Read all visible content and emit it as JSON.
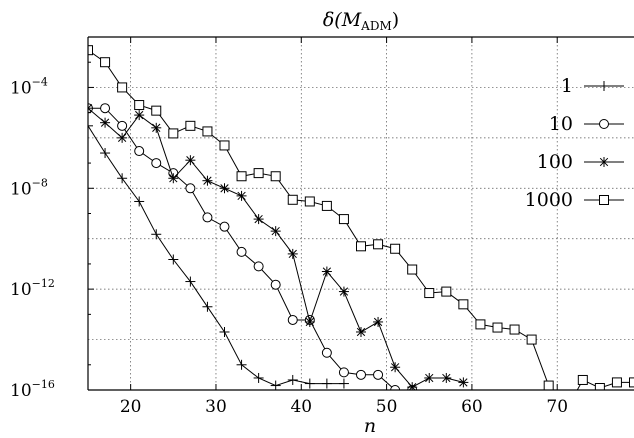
{
  "chart_data": {
    "type": "line",
    "title": "δ(M_ADM)",
    "title_parts": {
      "main": "δ(M",
      "sub": "ADM",
      "close": ")"
    },
    "xlabel": "n",
    "ylabel": "",
    "y_scale": "log",
    "xlim": [
      15,
      79
    ],
    "ylim": [
      1e-16,
      0.01
    ],
    "x_ticks": [
      20,
      30,
      40,
      50,
      60,
      70
    ],
    "x_tick_labels": [
      "20",
      "30",
      "40",
      "50",
      "60",
      "70"
    ],
    "y_ticks": [
      1e-16,
      1e-12,
      1e-08,
      0.0001
    ],
    "y_tick_labels": [
      {
        "base": "10",
        "exp": "−16"
      },
      {
        "base": "10",
        "exp": "−12"
      },
      {
        "base": "10",
        "exp": "−8"
      },
      {
        "base": "10",
        "exp": "−4"
      }
    ],
    "grid": true,
    "legend_position": "top-right",
    "series": [
      {
        "name": "1",
        "marker": "plus",
        "x": [
          15,
          17,
          19,
          21,
          23,
          25,
          27,
          29,
          31,
          33,
          35,
          37,
          39,
          41,
          43,
          45
        ],
        "y": [
          3e-06,
          2.5e-07,
          2.5e-08,
          3e-09,
          1.5e-10,
          1.5e-11,
          2e-12,
          2e-13,
          2e-14,
          1e-15,
          3e-16,
          1.5e-16,
          2.5e-16,
          1.8e-16,
          1.8e-16,
          1.8e-16
        ]
      },
      {
        "name": "10",
        "marker": "circle",
        "x": [
          15,
          17,
          19,
          21,
          23,
          25,
          27,
          29,
          31,
          33,
          35,
          37,
          39,
          41,
          43,
          45,
          47,
          49,
          51,
          53
        ],
        "y": [
          1.5e-05,
          1.5e-05,
          3e-06,
          3e-07,
          1e-07,
          4e-08,
          1e-08,
          7e-10,
          3e-10,
          3e-11,
          8e-12,
          1.5e-12,
          6e-14,
          6e-14,
          3e-15,
          5e-16,
          4e-16,
          4e-16,
          1e-16,
          1e-16
        ]
      },
      {
        "name": "100",
        "marker": "star",
        "x": [
          15,
          17,
          19,
          21,
          23,
          25,
          27,
          29,
          31,
          33,
          35,
          37,
          39,
          41,
          43,
          45,
          47,
          49,
          51,
          53,
          55,
          57,
          59
        ],
        "y": [
          1.5e-05,
          4e-06,
          1e-06,
          8e-06,
          2.5e-06,
          2.5e-08,
          1.3e-07,
          2e-08,
          1e-08,
          5e-09,
          6e-10,
          2e-10,
          2.5e-11,
          5e-14,
          5e-12,
          8e-13,
          2e-14,
          5e-14,
          8e-16,
          1.3e-16,
          3e-16,
          3e-16,
          2e-16
        ]
      },
      {
        "name": "1000",
        "marker": "square",
        "x": [
          15,
          17,
          19,
          21,
          23,
          25,
          27,
          29,
          31,
          33,
          35,
          37,
          39,
          41,
          43,
          45,
          47,
          49,
          51,
          53,
          55,
          57,
          59,
          61,
          63,
          65,
          67,
          69,
          71,
          73,
          75,
          77,
          79
        ],
        "y": [
          0.003,
          0.001,
          0.0001,
          2e-05,
          1.2e-05,
          1.5e-06,
          3e-06,
          1.8e-06,
          5e-07,
          3e-08,
          4e-08,
          3e-08,
          3.5e-09,
          3e-09,
          2e-09,
          6e-10,
          5e-11,
          6e-11,
          4e-11,
          6e-12,
          7e-13,
          8e-13,
          2.5e-13,
          4e-14,
          3e-14,
          2.5e-14,
          1e-14,
          1.5e-16,
          1.5e-17,
          2.5e-16,
          1.2e-16,
          2e-16,
          2e-16
        ]
      }
    ]
  }
}
